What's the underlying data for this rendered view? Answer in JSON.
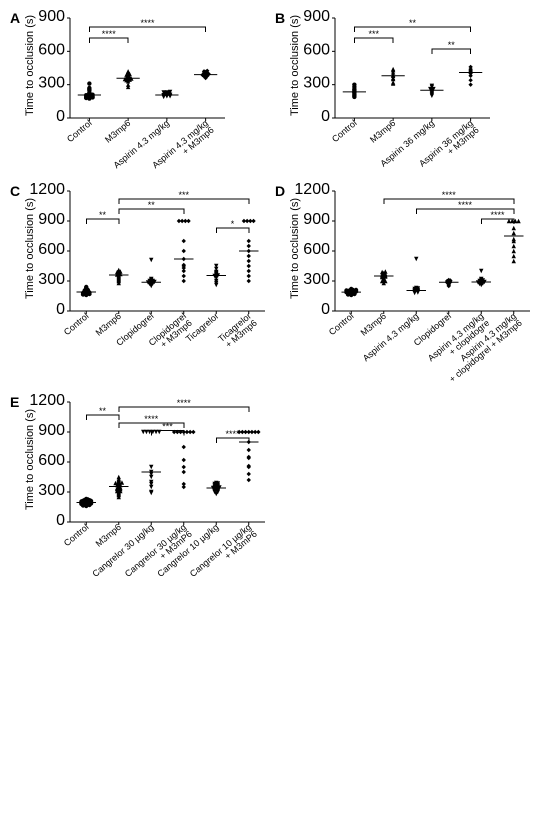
{
  "global": {
    "ylabel": "Time to occlusion (s)",
    "bg": "#ffffff",
    "axis_color": "#000000",
    "marker_fill": "#000000",
    "marker_size": 2.2,
    "label_fontsize": 11,
    "tick_fontsize": 10,
    "cat_fontsize": 9
  },
  "panels": {
    "A": {
      "ylim": [
        0,
        900
      ],
      "ytick_step": 300,
      "categories": [
        "Control",
        "M3mp6",
        "Aspirin 4.3 mg/kg",
        "Aspirin 4.3 mg/kg\n+ M3mp6"
      ],
      "markers": [
        "circle",
        "triangle",
        "down",
        "diamond"
      ],
      "data": [
        [
          180,
          190,
          200,
          210,
          210,
          205,
          215,
          180,
          230,
          250,
          260,
          175,
          195,
          270,
          310,
          185,
          190,
          220
        ],
        [
          280,
          300,
          330,
          340,
          350,
          355,
          360,
          370,
          380,
          390,
          395,
          410,
          420,
          345,
          355,
          365
        ],
        [
          190,
          200,
          210,
          215,
          220,
          200,
          195,
          205,
          225,
          230,
          205,
          215,
          230,
          235,
          200,
          195
        ],
        [
          360,
          370,
          375,
          380,
          385,
          390,
          395,
          400,
          410,
          415,
          420,
          425,
          378,
          388,
          405
        ]
      ],
      "sig": [
        {
          "from": 0,
          "to": 3,
          "y": 820,
          "label": "****"
        },
        {
          "from": 0,
          "to": 1,
          "y": 720,
          "label": "****"
        }
      ]
    },
    "B": {
      "ylim": [
        0,
        900
      ],
      "ytick_step": 300,
      "categories": [
        "Control",
        "M3mp6",
        "Aspirin 36 mg/kg",
        "Aspirin 36 mg/kg\n+ M3mp6"
      ],
      "markers": [
        "circle",
        "triangle",
        "down",
        "diamond"
      ],
      "data": [
        [
          190,
          200,
          210,
          260,
          300,
          280,
          250,
          240,
          230,
          225
        ],
        [
          310,
          320,
          350,
          360,
          380,
          390,
          410,
          430,
          440
        ],
        [
          200,
          210,
          220,
          250,
          280,
          240,
          260,
          255,
          260,
          290,
          230
        ],
        [
          300,
          340,
          380,
          400,
          440,
          460,
          430,
          420
        ]
      ],
      "sig": [
        {
          "from": 0,
          "to": 3,
          "y": 820,
          "label": "**"
        },
        {
          "from": 0,
          "to": 1,
          "y": 720,
          "label": "***"
        },
        {
          "from": 2,
          "to": 3,
          "y": 620,
          "label": "**"
        }
      ]
    },
    "C": {
      "ylim": [
        0,
        1200
      ],
      "ytick_step": 300,
      "categories": [
        "Control",
        "M3mp6",
        "Clopidogrel",
        "Clopidogrel\n+ M3mp6",
        "Ticagrelor",
        "Ticagrelor\n+ M3mp6"
      ],
      "markers": [
        "circle",
        "triangle",
        "down",
        "diamond",
        "down",
        "diamond"
      ],
      "data": [
        [
          160,
          170,
          180,
          190,
          200,
          210,
          220,
          230,
          180,
          195,
          205,
          215,
          185,
          175,
          240,
          165,
          170
        ],
        [
          280,
          300,
          330,
          350,
          370,
          380,
          390,
          400,
          340,
          360,
          310,
          395,
          410,
          365,
          320
        ],
        [
          250,
          260,
          280,
          290,
          300,
          320,
          270,
          290,
          310,
          510,
          280,
          275,
          300,
          285
        ],
        [
          300,
          350,
          400,
          450,
          520,
          600,
          700,
          900,
          900,
          900,
          430,
          460,
          900
        ],
        [
          260,
          280,
          300,
          330,
          360,
          390,
          420,
          450,
          350,
          370,
          340,
          355,
          380
        ],
        [
          300,
          350,
          400,
          500,
          600,
          900,
          900,
          900,
          650,
          700,
          450,
          900,
          550
        ]
      ],
      "sig": [
        {
          "from": 1,
          "to": 5,
          "y": 1120,
          "label": "***"
        },
        {
          "from": 1,
          "to": 3,
          "y": 1020,
          "label": "**"
        },
        {
          "from": 0,
          "to": 1,
          "y": 920,
          "label": "**"
        },
        {
          "from": 4,
          "to": 5,
          "y": 830,
          "label": "*"
        }
      ]
    },
    "D": {
      "ylim": [
        0,
        1200
      ],
      "ytick_step": 300,
      "categories": [
        "Control",
        "M3mp6",
        "Aspirin 4.3 mg/kg",
        "Clopidogrel",
        "Aspirin 4.3 mg/kg\n+ clopidogre",
        "Aspirin 4.3 mg/kg\n+ clopidogrel + M3mp6"
      ],
      "markers": [
        "circle",
        "triangle",
        "down",
        "diamond",
        "down",
        "triangle"
      ],
      "data": [
        [
          160,
          170,
          175,
          180,
          190,
          200,
          210,
          215,
          220,
          170,
          185,
          195,
          205,
          175,
          165,
          178,
          182,
          188,
          195,
          200,
          205,
          210
        ],
        [
          280,
          300,
          320,
          340,
          350,
          360,
          370,
          380,
          390,
          310,
          330,
          375,
          355,
          345,
          365,
          300,
          395
        ],
        [
          180,
          190,
          200,
          210,
          220,
          195,
          205,
          215,
          230,
          520,
          200,
          185,
          225
        ],
        [
          260,
          280,
          290,
          300,
          310,
          250,
          270,
          285,
          295,
          305
        ],
        [
          260,
          270,
          280,
          290,
          300,
          320,
          285,
          295,
          310,
          285,
          400,
          275,
          305
        ],
        [
          500,
          550,
          600,
          650,
          700,
          900,
          900,
          900,
          900,
          720,
          780,
          830
        ]
      ],
      "sig": [
        {
          "from": 1,
          "to": 5,
          "y": 1120,
          "label": "****"
        },
        {
          "from": 2,
          "to": 5,
          "y": 1020,
          "label": "****"
        },
        {
          "from": 4,
          "to": 5,
          "y": 920,
          "label": "****"
        }
      ]
    },
    "E": {
      "ylim": [
        0,
        1200
      ],
      "ytick_step": 300,
      "categories": [
        "Control",
        "M3mp6",
        "Cangrelor 30 µg/kg",
        "Cangrelor 30 µg/kg\n+ M3mP6",
        "Cangrelor 10 µg/kg",
        "Cangrelor 10 µg/kg\n+ M3mP6"
      ],
      "markers": [
        "circle",
        "triangle",
        "down",
        "diamond",
        "down",
        "diamond"
      ],
      "data": [
        [
          160,
          165,
          170,
          175,
          180,
          190,
          200,
          210,
          220,
          230,
          185,
          195,
          205,
          175,
          215,
          170,
          180,
          195,
          200,
          205,
          225,
          178,
          182,
          188,
          198,
          208,
          212,
          218
        ],
        [
          250,
          270,
          290,
          310,
          330,
          350,
          370,
          390,
          410,
          430,
          450,
          370,
          280,
          380,
          320,
          300,
          340,
          400,
          360,
          390,
          420,
          310,
          345,
          375,
          395,
          330
        ],
        [
          300,
          350,
          400,
          450,
          500,
          550,
          290,
          900,
          900,
          900,
          900,
          900,
          480,
          900,
          380
        ],
        [
          350,
          380,
          900,
          550,
          620,
          900,
          900,
          900,
          750,
          900,
          900,
          900,
          500
        ],
        [
          280,
          300,
          320,
          340,
          360,
          380,
          300,
          310,
          330,
          350,
          310,
          325,
          345,
          355,
          370,
          385,
          335,
          340,
          365,
          375,
          390
        ],
        [
          420,
          480,
          560,
          640,
          720,
          900,
          900,
          900,
          900,
          900,
          900,
          550,
          900,
          800,
          650
        ]
      ],
      "sig": [
        {
          "from": 1,
          "to": 5,
          "y": 1150,
          "label": "****"
        },
        {
          "from": 0,
          "to": 1,
          "y": 1070,
          "label": "**"
        },
        {
          "from": 1,
          "to": 3,
          "y": 990,
          "label": "****"
        },
        {
          "from": 2,
          "to": 3,
          "y": 915,
          "label": "***"
        },
        {
          "from": 4,
          "to": 5,
          "y": 840,
          "label": "****"
        }
      ]
    }
  },
  "layout": {
    "panel_order": [
      "A",
      "B",
      "C",
      "D",
      "E"
    ],
    "short_panels": [
      "A",
      "B"
    ]
  }
}
